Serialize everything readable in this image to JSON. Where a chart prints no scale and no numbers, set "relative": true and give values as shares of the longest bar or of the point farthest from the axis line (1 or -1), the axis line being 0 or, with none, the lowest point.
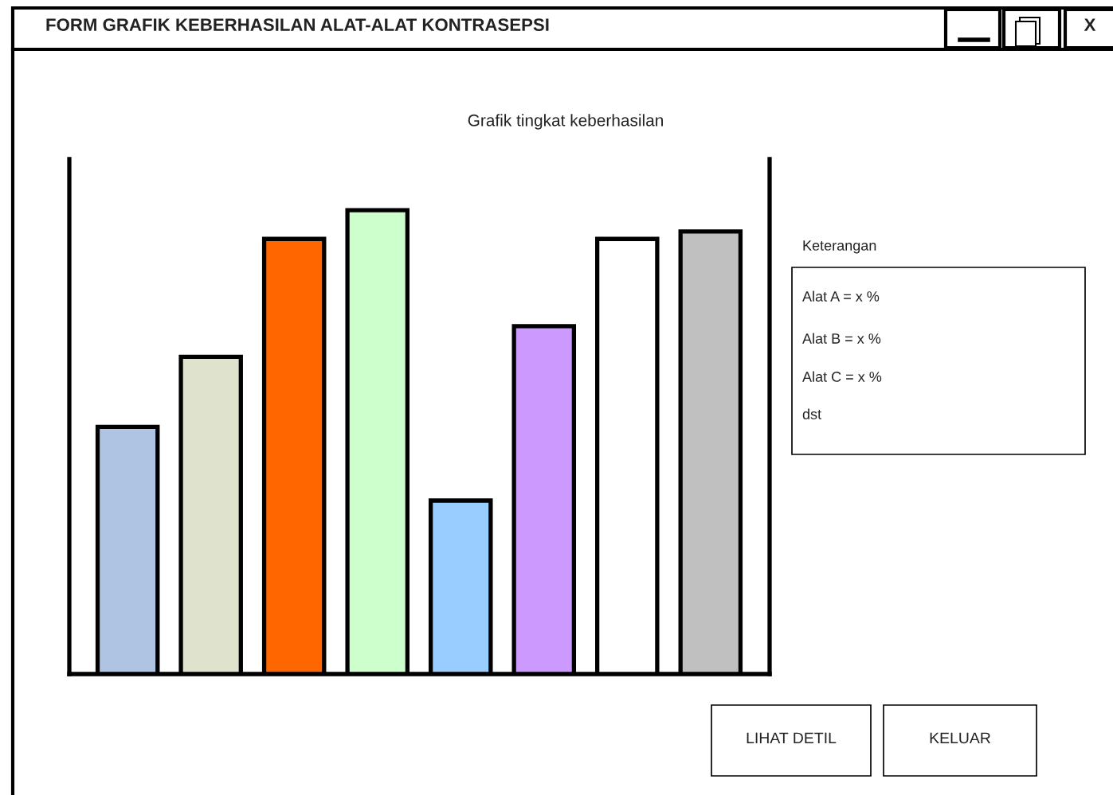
{
  "chart_data": {
    "type": "bar",
    "title": "Grafik tingkat keberhasilan",
    "relative": true,
    "categories": [
      null,
      null,
      null,
      null,
      null,
      null,
      null,
      null
    ],
    "values": [
      0.533,
      0.684,
      0.938,
      1,
      0.374,
      0.75,
      0.938,
      0.954
    ],
    "colors": [
      "#aec4e2",
      "#dfe2cc",
      "#ff6600",
      "#ccffcc",
      "#99ccff",
      "#cc99ff",
      "#ffffff",
      "#c0c0c0"
    ],
    "grid": false,
    "legend": false,
    "annotations": [
      "FORM GRAFIK KEBERHASILAN ALAT-ALAT KONTRASEPSI",
      "X",
      "Keterangan",
      "Alat A = x %",
      "Alat B = x %",
      "Alat C = x %",
      "dst",
      "LIHAT DETIL",
      "KELUAR"
    ]
  }
}
